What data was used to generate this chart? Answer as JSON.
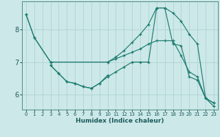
{
  "xlabel": "Humidex (Indice chaleur)",
  "bg_color": "#cce8e8",
  "grid_color": "#aacfcf",
  "line_color": "#1a7a6e",
  "xlim": [
    -0.5,
    23.5
  ],
  "ylim": [
    5.55,
    8.85
  ],
  "xticks": [
    0,
    1,
    2,
    3,
    4,
    5,
    6,
    7,
    8,
    9,
    10,
    11,
    12,
    13,
    14,
    15,
    16,
    17,
    18,
    19,
    20,
    21,
    22,
    23
  ],
  "yticks": [
    6,
    7,
    8
  ],
  "lines": [
    {
      "x": [
        0,
        1,
        3,
        10,
        11,
        12,
        13,
        14,
        15,
        16,
        17,
        18,
        19,
        20,
        21,
        22,
        23
      ],
      "y": [
        8.45,
        7.75,
        7.0,
        7.0,
        7.1,
        7.2,
        7.3,
        7.4,
        7.55,
        7.65,
        7.65,
        7.65,
        7.2,
        6.7,
        6.55,
        5.9,
        5.75
      ]
    },
    {
      "x": [
        0,
        1,
        3,
        10,
        11,
        12,
        13,
        14,
        15,
        16,
        17,
        18,
        19,
        20,
        21,
        22,
        23
      ],
      "y": [
        8.45,
        7.75,
        7.0,
        7.0,
        7.15,
        7.35,
        7.6,
        7.85,
        8.15,
        8.65,
        8.65,
        8.5,
        8.25,
        7.85,
        7.55,
        5.9,
        5.75
      ]
    },
    {
      "x": [
        3,
        4,
        5,
        6,
        7,
        8,
        9,
        10,
        11,
        12,
        13,
        14,
        15,
        16,
        17,
        18,
        19,
        20,
        21,
        22,
        23
      ],
      "y": [
        6.9,
        6.65,
        6.4,
        6.35,
        6.25,
        6.2,
        6.35,
        6.55,
        6.7,
        6.85,
        7.0,
        7.0,
        7.0,
        8.65,
        8.65,
        7.55,
        7.5,
        6.55,
        6.45,
        5.9,
        5.65
      ]
    },
    {
      "x": [
        3,
        4,
        5,
        6,
        7,
        8,
        9,
        10
      ],
      "y": [
        6.9,
        6.65,
        6.4,
        6.35,
        6.25,
        6.2,
        6.35,
        6.6
      ]
    }
  ]
}
